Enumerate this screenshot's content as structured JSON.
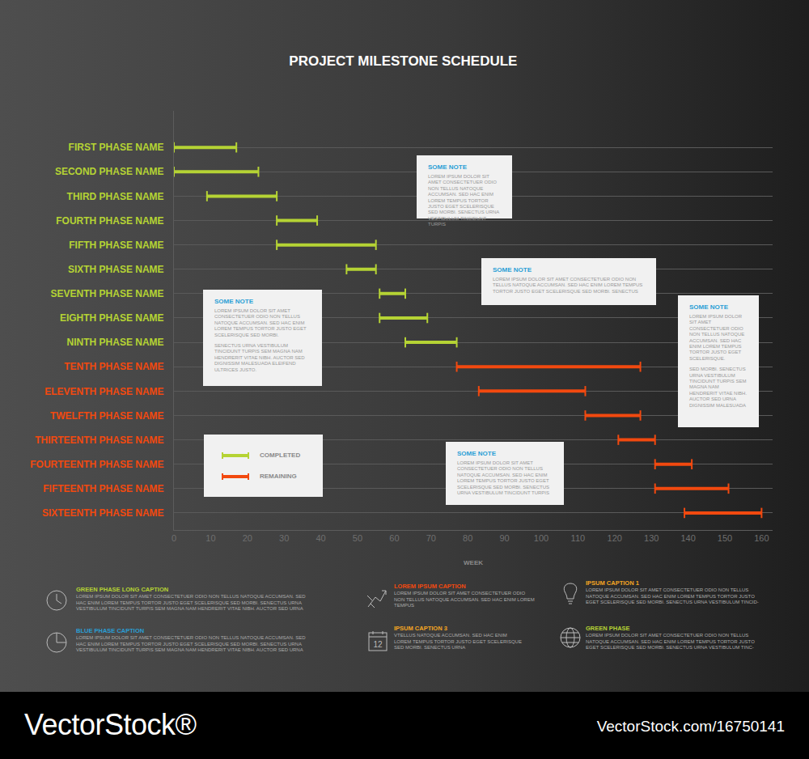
{
  "chart_data": {
    "type": "gantt",
    "title": "PROJECT MILESTONE SCHEDULE",
    "x_label": "WEEK",
    "categories": [
      "FIRST PHASE NAME",
      "SECOND PHASE NAME",
      "THIRD PHASE NAME",
      "FOURTH PHASE NAME",
      "FIFTH PHASE NAME",
      "SIXTH PHASE NAME",
      "SEVENTH PHASE NAME",
      "EIGHTH PHASE NAME",
      "NINTH PHASE NAME",
      "TENTH PHASE NAME",
      "ELEVENTH PHASE NAME",
      "TWELFTH PHASE NAME",
      "THIRTEENTH PHASE NAME",
      "FOURTEENTH PHASE NAME",
      "FIFTEENTH PHASE NAME",
      "SIXTEENTH PHASE NAME"
    ],
    "series": [
      {
        "name": "COMPLETED",
        "color": "#b5d334",
        "start": [
          0,
          0,
          9,
          28,
          28,
          47,
          56,
          56,
          63,
          null,
          null,
          null,
          null,
          null,
          null,
          null
        ],
        "end": [
          17,
          23,
          28,
          39,
          55,
          55,
          63,
          69,
          77,
          null,
          null,
          null,
          null,
          null,
          null,
          null
        ]
      },
      {
        "name": "REMAINING",
        "color": "#f2490f",
        "start": [
          null,
          null,
          null,
          null,
          null,
          null,
          null,
          null,
          null,
          77,
          83,
          112,
          121,
          131,
          131,
          139
        ],
        "end": [
          null,
          null,
          null,
          null,
          null,
          null,
          null,
          null,
          null,
          127,
          112,
          127,
          131,
          141,
          151,
          160
        ]
      }
    ],
    "xlim": [
      0,
      163
    ],
    "xticks": [
      0,
      10,
      20,
      30,
      40,
      50,
      60,
      70,
      80,
      90,
      100,
      110,
      120,
      130,
      140,
      150,
      160
    ],
    "grid": true,
    "notes": [
      {
        "title": "SOME NOTE",
        "text": [
          "LOREM IPSUM DOLOR SIT AMET CONSECTETUER ODIO NON TELLUS NATOQUE ACCUMSAN. SED HAC ENIM LOREM TEMPUS TORTOR JUSTO EGET SCELERISQUE SED MORBI. SENECTUS URNA VESTIBULUM TINCIDUNT TURPIS"
        ]
      },
      {
        "title": "SOME NOTE",
        "text": [
          "LOREM IPSUM DOLOR SIT AMET CONSECTETUER ODIO NON TELLUS NATOQUE ACCUMSAN. SED HAC ENIM LOREM TEMPUS TORTOR JUSTO EGET SCELERISQUE SED MORBI. SENECTUS"
        ]
      },
      {
        "title": "SOME NOTE",
        "text": [
          "LOREM IPSUM DOLOR SIT AMET CONSECTETUER ODIO NON TELLUS NATOQUE ACCUMSAN. SED HAC ENIM LOREM TEMPUS TORTOR JUSTO EGET SCELERISQUE SED MORBI.",
          "SENECTUS URNA VESTIBULUM TINCIDUNT TURPIS SEM MAGNA NAM HENDRERIT VITAE NIBH. AUCTOR SED DIGNISSIM MALESUADA ELEIFEND ULTRICES JUSTO."
        ]
      },
      {
        "title": "SOME NOTE",
        "text": [
          "LOREM IPSUM DOLOR SIT AMET CONSECTETUER ODIO NON TELLUS NATOQUE ACCUMSAN. SED HAC ENIM LOREM TEMPUS TORTOR JUSTO EGET SCELERISQUE.",
          "SED MORBI. SENECTUS URNA VESTIBULUM TINCIDUNT TURPIS SEM MAGNA NAM HENDRERIT VITAE NIBH. AUCTOR SED URNA DIGNISSIM MALESUADA"
        ]
      },
      {
        "title": "SOME NOTE",
        "text": [
          "LOREM IPSUM DOLOR SIT AMET CONSECTETUER ODIO NON TELLUS NATOQUE ACCUMSAN. SED HAC ENIM LOREM TEMPUS TORTOR JUSTO EGET SCELERISQUE SED MORBI. SENECTUS URNA VESTIBULUM TINCIDUNT TURPIS"
        ]
      }
    ],
    "captions": [
      {
        "title": "GREEN PHASE LONG CAPTION",
        "color": "#b5d334",
        "text": "LOREM IPSUM DOLOR SIT AMET CONSECTETUER ODIO NON TELLUS NATOQUE ACCUMSAN. SED HAC ENIM LOREM TEMPUS TORTOR JUSTO EGET SCELERISQUE SED MORBI. SENECTUS URNA VESTIBULUM TINCIDUNT TURPIS SEM MAGNA NAM HENDRERIT VITAE NIBH. AUCTOR SED URNA"
      },
      {
        "title": "BLUE PHASE CAPTION",
        "color": "#2a9fd6",
        "text": "LOREM IPSUM DOLOR SIT AMET CONSECTETUER ODIO NON TELLUS NATOQUE ACCUMSAN. SED HAC ENIM LOREM TEMPUS TORTOR JUSTO EGET SCELERISQUE SED MORBI. SENECTUS URNA VESTIBULUM TINCIDUNT TURPIS SEM MAGNA NAM HENDRERIT VITAE NIBH. AUCTOR SED URNA"
      },
      {
        "title": "LOREM IPSUM CAPTION",
        "color": "#f2490f",
        "text": "LOREM IPSUM DOLOR SIT AMET CONSECTETUER ODIO NON TELLUS NATOQUE ACCUMSAN. SED HAC ENIM LOREM TEMPUS"
      },
      {
        "title": "IPSUM CAPTION 3",
        "color": "#f5a623",
        "text": "VTELLUS NATOQUE ACCUMSAN. SED HAC ENIM LOREM TEMPUS TORTOR JUSTO EGET SCELERISQUE SED MORBI. SENECTUS URNA",
        "icon_text": "12"
      },
      {
        "title": "IPSUM CAPTION 1",
        "color": "#f5a623",
        "text": "LOREM IPSUM DOLOR SIT AMET CONSECTETUER ODIO NON TELLUS NATOQUE ACCUMSAN. SED HAC ENIM LOREM TEMPUS TORTOR JUSTO EGET SCELERISQUE SED MORBI. SENECTUS URNA VESTIBULUM TINCID-"
      },
      {
        "title": "GREEN PHASE",
        "color": "#b5d334",
        "text": "LOREM IPSUM DOLOR SIT AMET CONSECTETUER ODIO NON TELLUS NATOQUE ACCUMSAN. SED HAC ENIM LOREM TEMPUS TORTOR JUSTO EGET SCELERISQUE SED MORBI. SENECTUS URNA VESTIBULUM TINC-"
      }
    ]
  },
  "watermark": {
    "brand": "VectorStock®",
    "id": "VectorStock.com/16750141"
  }
}
